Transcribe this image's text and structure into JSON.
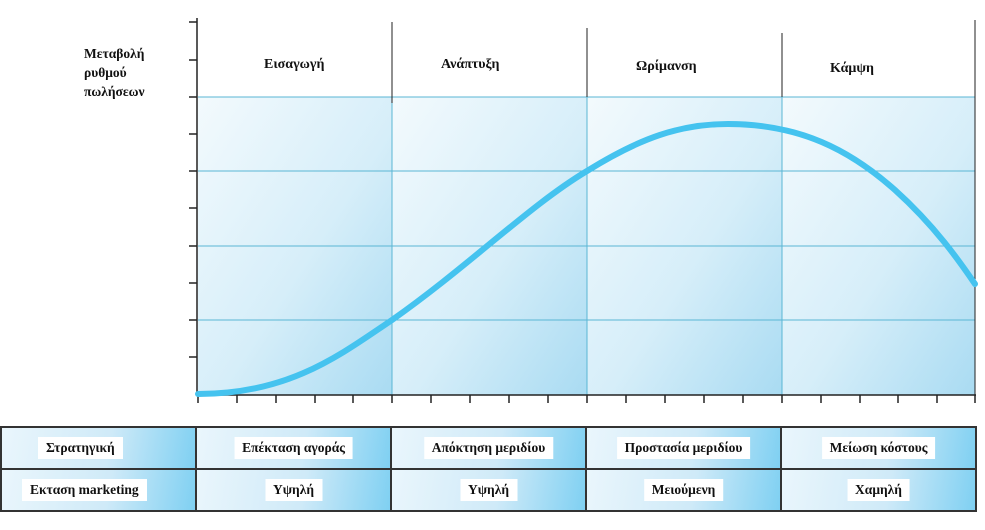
{
  "diagram": {
    "y_axis_label": [
      "Μεταβολή",
      "ρυθμού",
      "πωλήσεων"
    ],
    "phases": [
      "Εισαγωγή",
      "Ανάπτυξη",
      "Ωρίμανση",
      "Κάμψη"
    ],
    "colors": {
      "curve": "#45c3ef",
      "grid": "#4fb0cf",
      "axis": "#222222",
      "panel_light": "#f1f9fd",
      "panel_dark": "#b3dff4"
    }
  },
  "strategy_table": {
    "rows": [
      {
        "label": "Στρατηγική",
        "cells": [
          "Επέκταση αγοράς",
          "Απόκτηση μεριδίου",
          "Προστασία μεριδίου",
          "Μείωση κόστους"
        ]
      },
      {
        "label": "Εκταση marketing",
        "cells": [
          "Υψηλή",
          "Υψηλή",
          "Μειούμενη",
          "Χαμηλή"
        ]
      }
    ]
  }
}
